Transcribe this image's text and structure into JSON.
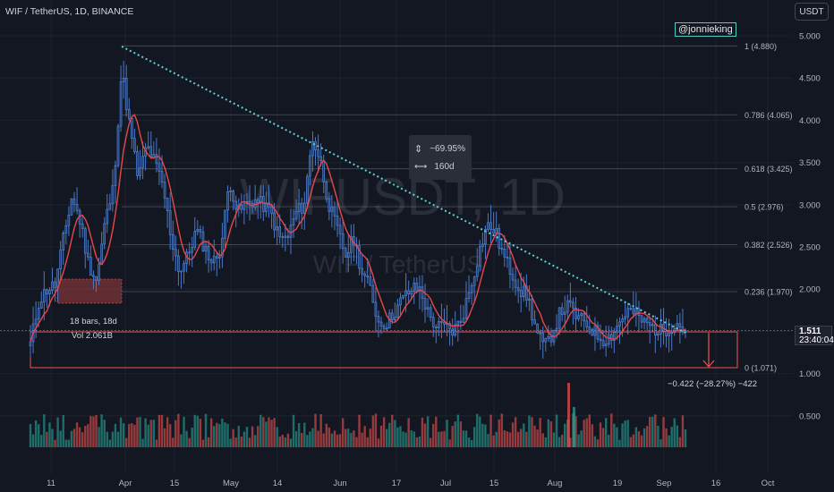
{
  "header": {
    "title": "WIF / TetherUS, 1D, BINANCE",
    "currency": "USDT"
  },
  "watermark": {
    "symbol": "WIFUSDT, 1D",
    "name": "WIF / TetherUS"
  },
  "handle": "@jonnieking",
  "measure": {
    "pct": "−69.95%",
    "days": "160d"
  },
  "price_badge": {
    "price": "1.511",
    "countdown": "23:40:04"
  },
  "change_label": "−0.422 (−28.27%) −422",
  "bars_label": "18 bars, 18d",
  "vol_label": "Vol 2.061B",
  "colors": {
    "up": "#26a69a",
    "down": "#ef5350",
    "bg": "#131722",
    "ma": "#e5484d",
    "trend": "#5fd1d6",
    "fib": "#787b86"
  },
  "chart_data": {
    "type": "candlestick",
    "x_ticks": [
      "11",
      "Apr",
      "15",
      "May",
      "14",
      "Jun",
      "17",
      "Jul",
      "15",
      "Aug",
      "19",
      "Sep",
      "16",
      "Oct"
    ],
    "y_ticks": [
      "5.000",
      "4.500",
      "4.000",
      "3.500",
      "3.000",
      "2.500",
      "2.000",
      "1.500",
      "1.000",
      "0.500"
    ],
    "ylim": [
      0.1,
      5.2
    ],
    "fib_levels": [
      {
        "label": "1 (4.880)",
        "value": 4.88
      },
      {
        "label": "0.786 (4.065)",
        "value": 4.065
      },
      {
        "label": "0.618 (3.425)",
        "value": 3.425
      },
      {
        "label": "0.5 (2.976)",
        "value": 2.976
      },
      {
        "label": "0.382 (2.526)",
        "value": 2.526
      },
      {
        "label": "0.236 (1.970)",
        "value": 1.97
      },
      {
        "label": "0 (1.071)",
        "value": 1.071
      }
    ],
    "last_price": 1.511,
    "close_path": [
      1.35,
      1.85,
      2.0,
      2.05,
      2.6,
      3.1,
      2.8,
      2.3,
      2.1,
      2.8,
      3.2,
      4.6,
      3.9,
      3.3,
      3.7,
      3.5,
      3.2,
      2.6,
      2.2,
      2.4,
      2.7,
      2.5,
      2.3,
      2.5,
      3.3,
      2.9,
      3.0,
      3.05,
      3.0,
      2.9,
      2.6,
      2.6,
      2.9,
      3.0,
      3.8,
      3.5,
      3.0,
      2.7,
      2.4,
      2.6,
      2.2,
      2.0,
      1.6,
      1.6,
      1.75,
      1.9,
      2.0,
      2.0,
      1.7,
      1.55,
      1.55,
      1.5,
      1.65,
      2.0,
      2.4,
      2.75,
      2.7,
      2.4,
      2.2,
      2.0,
      1.9,
      1.5,
      1.3,
      1.5,
      1.75,
      1.8,
      1.65,
      1.6,
      1.5,
      1.4,
      1.45,
      1.6,
      1.75,
      1.7,
      1.6,
      1.55,
      1.5,
      1.55,
      1.6,
      1.51
    ]
  }
}
